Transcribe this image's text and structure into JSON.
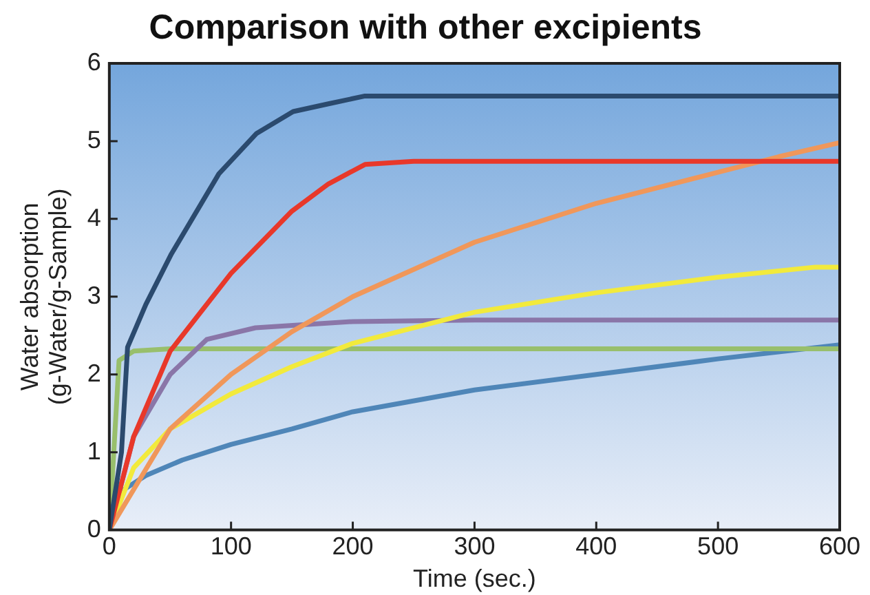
{
  "chart_data": {
    "type": "line",
    "title": "Comparison with other excipients",
    "xlabel": "Time (sec.)",
    "ylabel": "Water absorption\n(g-Water/g-Sample)",
    "xlim": [
      0,
      600
    ],
    "xticks": [
      0,
      100,
      200,
      300,
      400,
      500,
      600
    ],
    "ylim": [
      0,
      6
    ],
    "yticks": [
      0,
      1,
      2,
      3,
      4,
      5,
      6
    ],
    "grid": false,
    "legend": false,
    "marker": "none",
    "line_style": "solid",
    "series": [
      {
        "color": "#2b4a6e",
        "x": [
          0,
          10,
          15,
          30,
          51,
          90,
          121,
          151,
          180,
          210,
          300,
          600
        ],
        "values": [
          0,
          1.0,
          2.35,
          2.9,
          3.55,
          4.58,
          5.1,
          5.38,
          5.48,
          5.58,
          5.58,
          5.58
        ]
      },
      {
        "color": "#e8382a",
        "x": [
          0,
          20,
          50,
          100,
          150,
          180,
          210,
          250,
          600
        ],
        "values": [
          0,
          1.2,
          2.3,
          3.3,
          4.1,
          4.45,
          4.7,
          4.74,
          4.74
        ]
      },
      {
        "color": "#f0975a",
        "x": [
          0,
          50,
          100,
          150,
          200,
          300,
          400,
          500,
          550,
          600
        ],
        "values": [
          0,
          1.3,
          2.0,
          2.55,
          3.0,
          3.7,
          4.2,
          4.6,
          4.8,
          4.98
        ]
      },
      {
        "color": "#f2ea3c",
        "x": [
          0,
          20,
          50,
          100,
          150,
          200,
          300,
          400,
          500,
          580,
          600
        ],
        "values": [
          0,
          0.8,
          1.3,
          1.75,
          2.1,
          2.4,
          2.8,
          3.05,
          3.25,
          3.38,
          3.38
        ]
      },
      {
        "color": "#8a76a8",
        "x": [
          0,
          20,
          50,
          80,
          120,
          200,
          300,
          600
        ],
        "values": [
          0,
          1.2,
          2.0,
          2.45,
          2.6,
          2.68,
          2.7,
          2.7
        ]
      },
      {
        "color": "#98bf6c",
        "x": [
          0,
          8,
          20,
          50,
          600
        ],
        "values": [
          0,
          2.18,
          2.3,
          2.33,
          2.33
        ]
      },
      {
        "color": "#4f86b8",
        "x": [
          0,
          10,
          30,
          60,
          100,
          150,
          200,
          300,
          400,
          500,
          600
        ],
        "values": [
          0,
          0.5,
          0.7,
          0.9,
          1.1,
          1.3,
          1.52,
          1.8,
          2.0,
          2.2,
          2.38
        ]
      }
    ]
  }
}
